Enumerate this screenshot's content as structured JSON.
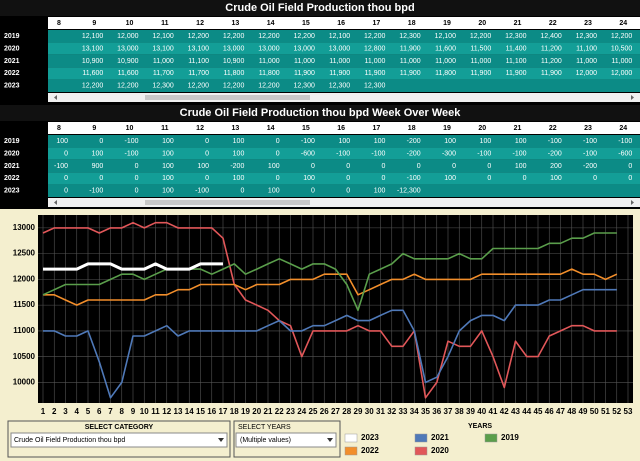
{
  "table1": {
    "title": "Crude Oil Field Production thou bpd",
    "columns": [
      8,
      9,
      10,
      11,
      12,
      13,
      14,
      15,
      16,
      17,
      18,
      19,
      20,
      21,
      22,
      23,
      24
    ],
    "rows": [
      {
        "year": "2019",
        "cells": [
          null,
          "12,100",
          "12,000",
          "12,100",
          "12,200",
          "12,200",
          "12,200",
          "12,200",
          "12,100",
          "12,200",
          "12,300",
          "12,100",
          "12,200",
          "12,300",
          "12,400",
          "12,300",
          "12,200"
        ]
      },
      {
        "year": "2020",
        "cells": [
          null,
          "13,100",
          "13,000",
          "13,100",
          "13,100",
          "13,000",
          "13,000",
          "13,000",
          "13,000",
          "12,800",
          "11,900",
          "11,600",
          "11,500",
          "11,400",
          "11,200",
          "11,100",
          "10,500"
        ]
      },
      {
        "year": "2021",
        "cells": [
          null,
          "10,900",
          "10,900",
          "11,000",
          "11,100",
          "10,900",
          "11,000",
          "11,000",
          "11,000",
          "11,000",
          "11,000",
          "11,000",
          "11,000",
          "11,100",
          "11,200",
          "11,000",
          "11,000"
        ]
      },
      {
        "year": "2022",
        "cells": [
          null,
          "11,600",
          "11,600",
          "11,700",
          "11,700",
          "11,800",
          "11,800",
          "11,900",
          "11,900",
          "11,900",
          "11,900",
          "11,800",
          "11,900",
          "11,900",
          "11,900",
          "12,000",
          "12,000"
        ]
      },
      {
        "year": "2023",
        "cells": [
          null,
          "12,200",
          "12,200",
          "12,300",
          "12,200",
          "12,200",
          "12,200",
          "12,300",
          "12,300",
          "12,300",
          null,
          null,
          null,
          null,
          null,
          null,
          null
        ]
      }
    ]
  },
  "table2": {
    "title": "Crude Oil Field Production thou bpd Week Over Week",
    "columns": [
      8,
      9,
      10,
      11,
      12,
      13,
      14,
      15,
      16,
      17,
      18,
      19,
      20,
      21,
      22,
      23,
      24
    ],
    "rows": [
      {
        "year": "2019",
        "cells": [
          "100",
          "0",
          "-100",
          "100",
          "0",
          "100",
          "0",
          "-100",
          "100",
          "100",
          "-200",
          "100",
          "100",
          "100",
          "-100",
          "-100",
          "-100"
        ]
      },
      {
        "year": "2020",
        "cells": [
          "0",
          "100",
          "-100",
          "100",
          "0",
          "100",
          "0",
          "-600",
          "-100",
          "-100",
          "-200",
          "-300",
          "-100",
          "-100",
          "-200",
          "-100",
          "-600"
        ]
      },
      {
        "year": "2021",
        "cells": [
          "-100",
          "900",
          "0",
          "100",
          "100",
          "-200",
          "100",
          "0",
          "0",
          "0",
          "0",
          "0",
          "0",
          "100",
          "200",
          "-200",
          "0"
        ]
      },
      {
        "year": "2022",
        "cells": [
          "0",
          "0",
          "0",
          "100",
          "0",
          "100",
          "0",
          "100",
          "0",
          "0",
          "-100",
          "100",
          "0",
          "0",
          "100",
          "0",
          "0"
        ]
      },
      {
        "year": "2023",
        "cells": [
          "0",
          "-100",
          "0",
          "100",
          "-100",
          "0",
          "100",
          "0",
          "0",
          "100",
          "-12,300",
          null,
          null,
          null,
          null,
          null,
          null
        ]
      }
    ]
  },
  "chart_data": {
    "type": "line",
    "categories": [
      1,
      2,
      3,
      4,
      5,
      6,
      7,
      8,
      9,
      10,
      11,
      12,
      13,
      14,
      15,
      16,
      17,
      18,
      19,
      20,
      21,
      22,
      23,
      24,
      25,
      26,
      27,
      28,
      29,
      30,
      31,
      32,
      33,
      34,
      35,
      36,
      37,
      38,
      39,
      40,
      41,
      42,
      43,
      44,
      45,
      46,
      47,
      48,
      49,
      50,
      51,
      52,
      53
    ],
    "ylim": [
      9600,
      13250
    ],
    "yticks": [
      10000,
      10500,
      11000,
      11500,
      12000,
      12500,
      13000
    ],
    "grid": true,
    "legend_title": "YEARS",
    "series": [
      {
        "name": "2023",
        "color": "#ffffff",
        "values": [
          12200,
          12200,
          12200,
          12200,
          12300,
          12300,
          12300,
          12200,
          12200,
          12200,
          12300,
          12200,
          12200,
          12200,
          12300,
          12300,
          12300,
          null,
          null,
          null,
          null,
          null,
          null,
          null,
          null,
          null,
          null,
          null,
          null,
          null,
          null,
          null,
          null,
          null,
          null,
          null,
          null,
          null,
          null,
          null,
          null,
          null,
          null,
          null,
          null,
          null,
          null,
          null,
          null,
          null,
          null,
          null,
          null
        ]
      },
      {
        "name": "2021",
        "color": "#4f79b8",
        "values": [
          11000,
          11000,
          10900,
          10900,
          11000,
          10400,
          9700,
          10000,
          10900,
          10900,
          11000,
          11100,
          10900,
          11000,
          11000,
          11000,
          11000,
          11000,
          11000,
          11000,
          11100,
          11200,
          11000,
          11000,
          11100,
          11100,
          11200,
          11300,
          11200,
          11200,
          11300,
          11400,
          11400,
          11000,
          10000,
          10100,
          10500,
          11000,
          11200,
          11300,
          11300,
          11200,
          11500,
          11500,
          11500,
          11600,
          11600,
          11700,
          11800,
          11800,
          11800,
          11800,
          null
        ]
      },
      {
        "name": "2019",
        "color": "#5a9e4b",
        "values": [
          11700,
          11800,
          11900,
          11900,
          11900,
          11900,
          12000,
          12100,
          12100,
          12000,
          12100,
          12200,
          12200,
          12200,
          12200,
          12100,
          12200,
          12300,
          12100,
          12200,
          12300,
          12400,
          12300,
          12200,
          12300,
          12300,
          12200,
          11900,
          11400,
          12100,
          12200,
          12300,
          12500,
          12400,
          12400,
          12400,
          12400,
          12500,
          12400,
          12400,
          12600,
          12600,
          12600,
          12600,
          12600,
          12700,
          12700,
          12800,
          12800,
          12900,
          12900,
          12900,
          null
        ]
      },
      {
        "name": "2022",
        "color": "#f28e2b",
        "values": [
          11700,
          11700,
          11600,
          11500,
          11600,
          11600,
          11600,
          11600,
          11600,
          11600,
          11700,
          11700,
          11800,
          11800,
          11900,
          11900,
          11900,
          11900,
          11800,
          11900,
          11900,
          11900,
          12000,
          12000,
          12000,
          12100,
          12100,
          12100,
          11700,
          11800,
          11900,
          12000,
          12000,
          12100,
          12000,
          12000,
          12000,
          12000,
          12000,
          12100,
          12100,
          12100,
          12100,
          12100,
          12100,
          12100,
          12100,
          12200,
          12100,
          12100,
          12000,
          12100,
          null
        ]
      },
      {
        "name": "2020",
        "color": "#e15759",
        "values": [
          12900,
          13000,
          13000,
          13000,
          13000,
          12900,
          13000,
          13000,
          13100,
          13000,
          13100,
          13100,
          13000,
          13000,
          13000,
          13000,
          12800,
          11900,
          11600,
          11500,
          11400,
          11200,
          11100,
          10500,
          11000,
          11000,
          11000,
          11000,
          11100,
          11000,
          11000,
          10700,
          10700,
          11000,
          9700,
          10000,
          10800,
          10700,
          10700,
          11000,
          10500,
          9900,
          10800,
          10500,
          10500,
          10900,
          11000,
          11100,
          11100,
          11000,
          11000,
          11000,
          null
        ]
      }
    ]
  },
  "filters": {
    "category": {
      "label": "SELECT CATEGORY",
      "value": "Crude Oil Field Production thou bpd"
    },
    "years": {
      "label": "SELECT YEARS",
      "value": "(Multiple values)"
    }
  }
}
